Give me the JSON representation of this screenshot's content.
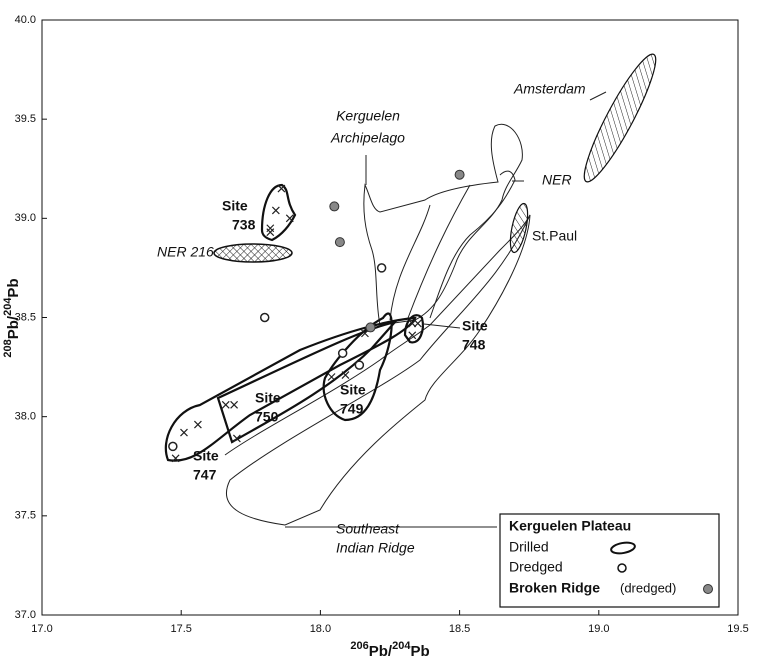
{
  "chart_data": {
    "type": "scatter",
    "x_label_parts": [
      "206",
      "Pb/",
      "204",
      "Pb"
    ],
    "y_label_parts": [
      "208",
      "Pb/",
      "204",
      "Pb"
    ],
    "xlim": [
      17.0,
      19.5
    ],
    "ylim": [
      37.0,
      40.0
    ],
    "xticks": [
      {
        "value": 17.0,
        "label": "17.0"
      },
      {
        "value": 17.5,
        "label": "17.5"
      },
      {
        "value": 18.0,
        "label": "18.0"
      },
      {
        "value": 18.5,
        "label": "18.5"
      },
      {
        "value": 19.0,
        "label": "19.0"
      },
      {
        "value": 19.5,
        "label": "19.5"
      }
    ],
    "yticks": [
      {
        "value": 37.0,
        "label": "37.0"
      },
      {
        "value": 37.5,
        "label": "37.5"
      },
      {
        "value": 38.0,
        "label": "38.0"
      },
      {
        "value": 38.5,
        "label": "38.5"
      },
      {
        "value": 39.0,
        "label": "39.0"
      },
      {
        "value": 39.5,
        "label": "39.5"
      },
      {
        "value": 40.0,
        "label": "40.0"
      }
    ],
    "series": [
      {
        "name": "Drilled",
        "marker": "cross",
        "color": "#222222",
        "x": [
          17.86,
          17.84,
          17.89,
          17.82,
          17.82,
          17.48,
          17.51,
          17.56,
          17.66,
          17.69,
          17.7,
          18.04,
          18.09,
          18.16,
          18.33,
          18.33,
          18.35
        ],
        "y": [
          39.15,
          39.04,
          39.0,
          38.95,
          38.93,
          37.79,
          37.92,
          37.96,
          38.06,
          38.06,
          37.89,
          38.2,
          38.21,
          38.42,
          38.47,
          38.41,
          38.47
        ]
      },
      {
        "name": "Dredged",
        "marker": "open-circle",
        "color": "#222222",
        "x": [
          17.8,
          18.22,
          18.08,
          18.14,
          17.47
        ],
        "y": [
          38.5,
          38.75,
          38.32,
          38.26,
          37.85
        ]
      },
      {
        "name": "Broken Ridge",
        "marker": "gray-circle",
        "color": "#888888",
        "x": [
          18.05,
          18.07,
          18.5,
          18.18
        ],
        "y": [
          39.06,
          38.88,
          39.22,
          38.45
        ]
      }
    ],
    "legend_title": "Kerguelen Plateau",
    "legend_note": "(dredged)",
    "annotations": {
      "amsterdam": "Amsterdam",
      "kerguelen": [
        "Kerguelen",
        "Archipelago"
      ],
      "ner": "NER",
      "st_paul": "St.Paul",
      "ner216": "NER 216",
      "site738": [
        "Site",
        "738"
      ],
      "site748": [
        "Site",
        "748"
      ],
      "site750": [
        "Site",
        "750"
      ],
      "site749": [
        "Site",
        "749"
      ],
      "site747": [
        "Site",
        "747"
      ],
      "seir": [
        "Southeast",
        "Indian Ridge"
      ]
    }
  }
}
